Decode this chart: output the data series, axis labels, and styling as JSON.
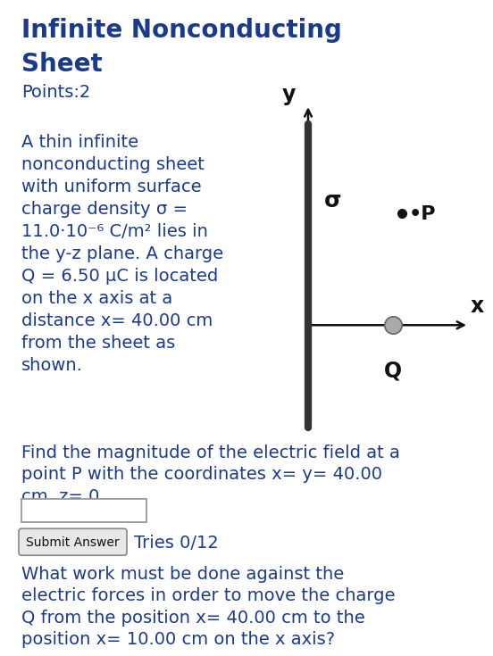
{
  "title_line1": "Infinite Nonconducting",
  "title_line2": "Sheet",
  "title_color": "#1a3a8c",
  "title_fontsize": 20,
  "points_text": "Points:2",
  "body_color": "#1a3a8c",
  "body_fontsize": 14,
  "body_text": "A thin infinite\nnonconducting sheet\nwith uniform surface\ncharge density σ =\n11.0·10⁻⁶ C/m² lies in\nthe y-z plane. A charge\nQ = 6.50 μC is located\non the x axis at a\ndistance x= 40.00 cm\nfrom the sheet as\nshown.",
  "question1": "Find the magnitude of the electric field at a\npoint P with the coordinates x= y= 40.00\ncm, z= 0.",
  "question2": "What work must be done against the\nelectric forces in order to move the charge\nQ from the position x= 40.00 cm to the\nposition x= 10.00 cm on the x axis?",
  "tries_text": "Tries 0/12",
  "bg_color": "#ffffff",
  "text_color": "#1a3a8c",
  "diagram_color": "#111111",
  "sheet_color": "#666666",
  "Q_dot_color": "#aaaaaa",
  "P_dot_color": "#111111"
}
